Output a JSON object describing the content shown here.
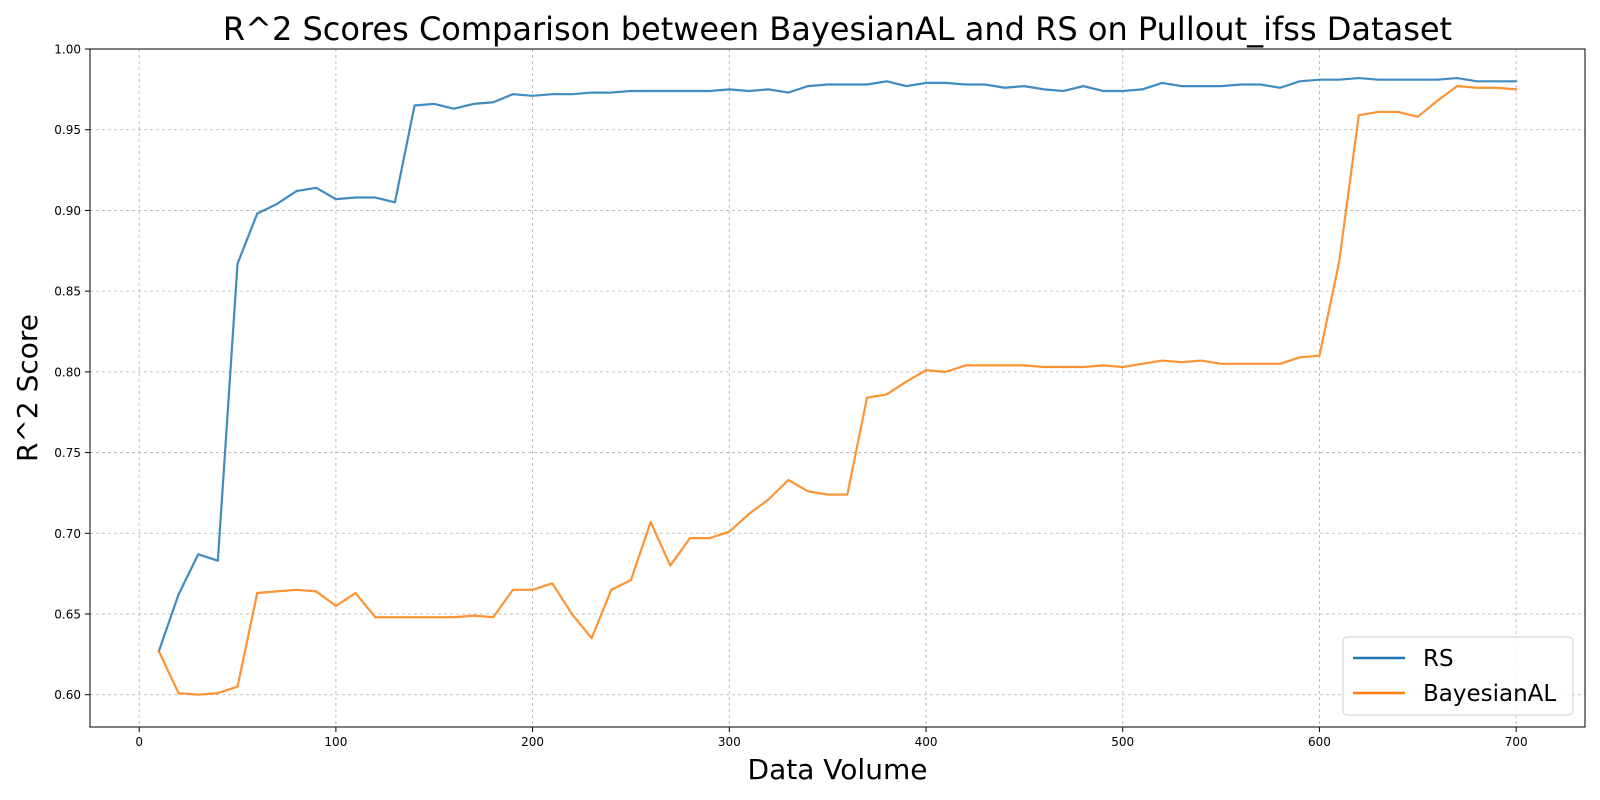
{
  "chart_data": {
    "type": "line",
    "title": "R^2 Scores Comparison between BayesianAL and RS on Pullout_ifss Dataset",
    "xlabel": "Data Volume",
    "ylabel": "R^2 Score",
    "xlim": [
      -25,
      735
    ],
    "ylim": [
      0.58,
      1.0
    ],
    "xticks": [
      "0",
      "100",
      "200",
      "300",
      "400",
      "500",
      "600",
      "700"
    ],
    "yticks": [
      "0.60",
      "0.65",
      "0.70",
      "0.75",
      "0.80",
      "0.85",
      "0.90",
      "0.95",
      "1.00"
    ],
    "grid": true,
    "legend_position": "lower-right",
    "x": [
      10,
      20,
      30,
      40,
      50,
      60,
      70,
      80,
      90,
      100,
      110,
      120,
      130,
      140,
      150,
      160,
      170,
      180,
      190,
      200,
      210,
      220,
      230,
      240,
      250,
      260,
      270,
      280,
      290,
      300,
      310,
      320,
      330,
      340,
      350,
      360,
      370,
      380,
      390,
      400,
      410,
      420,
      430,
      440,
      450,
      460,
      470,
      480,
      490,
      500,
      510,
      520,
      530,
      540,
      550,
      560,
      570,
      580,
      590,
      600,
      610,
      620,
      630,
      640,
      650,
      660,
      670,
      680,
      690,
      700
    ],
    "series": [
      {
        "name": "RS",
        "color": "#1f77b4",
        "values": [
          0.627,
          0.662,
          0.687,
          0.683,
          0.867,
          0.898,
          0.904,
          0.912,
          0.914,
          0.907,
          0.908,
          0.908,
          0.905,
          0.965,
          0.966,
          0.963,
          0.966,
          0.967,
          0.972,
          0.971,
          0.972,
          0.972,
          0.973,
          0.973,
          0.974,
          0.974,
          0.974,
          0.974,
          0.974,
          0.975,
          0.974,
          0.975,
          0.973,
          0.977,
          0.978,
          0.978,
          0.978,
          0.98,
          0.977,
          0.979,
          0.979,
          0.978,
          0.978,
          0.976,
          0.977,
          0.975,
          0.974,
          0.977,
          0.974,
          0.974,
          0.975,
          0.979,
          0.977,
          0.977,
          0.977,
          0.978,
          0.978,
          0.976,
          0.98,
          0.981,
          0.981,
          0.982,
          0.981,
          0.981,
          0.981,
          0.981,
          0.982,
          0.98,
          0.98,
          0.98
        ]
      },
      {
        "name": "BayesianAL",
        "color": "#ff7f0e",
        "values": [
          0.627,
          0.601,
          0.6,
          0.601,
          0.605,
          0.663,
          0.664,
          0.665,
          0.664,
          0.655,
          0.663,
          0.648,
          0.648,
          0.648,
          0.648,
          0.648,
          0.649,
          0.648,
          0.665,
          0.665,
          0.669,
          0.65,
          0.635,
          0.665,
          0.671,
          0.707,
          0.68,
          0.697,
          0.697,
          0.701,
          0.712,
          0.721,
          0.733,
          0.726,
          0.724,
          0.724,
          0.784,
          0.786,
          0.794,
          0.801,
          0.8,
          0.804,
          0.804,
          0.804,
          0.804,
          0.803,
          0.803,
          0.803,
          0.804,
          0.803,
          0.805,
          0.807,
          0.806,
          0.807,
          0.805,
          0.805,
          0.805,
          0.805,
          0.809,
          0.81,
          0.868,
          0.959,
          0.961,
          0.961,
          0.958,
          0.968,
          0.977,
          0.976,
          0.976,
          0.975
        ]
      }
    ]
  }
}
